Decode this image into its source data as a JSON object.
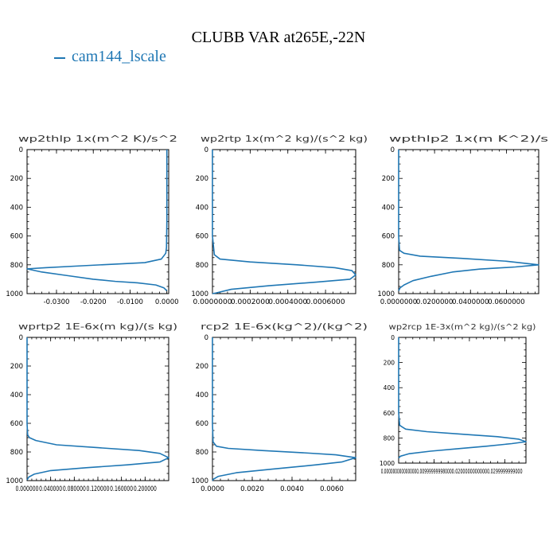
{
  "title": "CLUBB VAR at265E,-22N",
  "legend": {
    "label": "cam144_lscale",
    "color": "#1f77b4"
  },
  "series_color": "#1f77b4",
  "y_ticks": [
    "0",
    "200",
    "400",
    "600",
    "800",
    "1000"
  ],
  "chart_data": [
    {
      "type": "line",
      "title": "wp2thlp  1x(m^2 K)/s^2",
      "xlim": [
        -0.038,
        0.0005
      ],
      "ylim": [
        1000,
        0
      ],
      "x_ticks": [
        -0.03,
        -0.02,
        -0.01,
        0.0
      ],
      "x_tick_labels": [
        "-0.0300",
        "-0.0200",
        "-0.0100",
        "0.0000"
      ],
      "series": [
        {
          "name": "cam144_lscale",
          "x": [
            0.0,
            0.0,
            0.0,
            -0.0001,
            -0.0003,
            -0.0015,
            -0.006,
            -0.014,
            -0.024,
            -0.033,
            -0.038,
            -0.034,
            -0.027,
            -0.02,
            -0.014,
            -0.008,
            -0.003,
            -0.0008,
            0.0
          ],
          "y": [
            0,
            200,
            500,
            680,
            720,
            760,
            785,
            795,
            808,
            820,
            828,
            850,
            875,
            900,
            915,
            925,
            940,
            960,
            980
          ]
        }
      ]
    },
    {
      "type": "line",
      "title": "wp2rtp  1x(m^2 kg)/(s^2 kg)",
      "xlim": [
        0.0,
        0.00076
      ],
      "ylim": [
        1000,
        0
      ],
      "x_ticks": [
        0.0,
        0.0002,
        0.0004,
        0.0006
      ],
      "x_tick_labels": [
        "0.0000000",
        "0.0002000",
        "0.0004000",
        "0.0006000"
      ],
      "series": [
        {
          "name": "cam144_lscale",
          "x": [
            0.0,
            0.0,
            0.0,
            1e-05,
            4e-05,
            0.0002,
            0.00045,
            0.00065,
            0.00074,
            0.00076,
            0.00073,
            0.00055,
            0.0003,
            0.0001,
            2e-05,
            0.0
          ],
          "y": [
            0,
            300,
            600,
            730,
            760,
            780,
            800,
            820,
            840,
            870,
            900,
            920,
            945,
            970,
            995,
            1000
          ]
        }
      ]
    },
    {
      "type": "line",
      "title": "wpthlp2  1x(m K^2)/s",
      "xlim": [
        0.0,
        0.078
      ],
      "ylim": [
        1000,
        0
      ],
      "x_ticks": [
        0.0,
        0.02,
        0.04,
        0.06
      ],
      "x_tick_labels": [
        "0.0000000",
        "0.0200000",
        "0.0400000",
        "0.0600000"
      ],
      "series": [
        {
          "name": "cam144_lscale",
          "x": [
            0.0,
            0.0,
            0.0,
            0.0005,
            0.003,
            0.012,
            0.035,
            0.06,
            0.078,
            0.065,
            0.045,
            0.03,
            0.018,
            0.008,
            0.003,
            0.0008,
            0.0
          ],
          "y": [
            0,
            300,
            600,
            700,
            720,
            740,
            755,
            775,
            800,
            815,
            830,
            850,
            880,
            910,
            940,
            960,
            980
          ]
        }
      ]
    },
    {
      "type": "line",
      "title": "wprtp2  1E-6x(m kg)/(s kg)",
      "xlim": [
        0.0,
        0.24
      ],
      "ylim": [
        1000,
        0
      ],
      "x_ticks": [
        0.0,
        0.04,
        0.08,
        0.12,
        0.16,
        0.2
      ],
      "x_tick_labels": [
        "0.000000",
        "0.040000",
        "0.080000",
        "0.120000",
        "0.160000",
        "0.200000"
      ],
      "series": [
        {
          "name": "cam144_lscale",
          "x": [
            0.0,
            0.0,
            0.0,
            0.001,
            0.004,
            0.015,
            0.05,
            0.12,
            0.19,
            0.225,
            0.24,
            0.225,
            0.17,
            0.1,
            0.04,
            0.012,
            0.003,
            0.0
          ],
          "y": [
            0,
            300,
            600,
            680,
            700,
            720,
            750,
            770,
            790,
            810,
            840,
            870,
            890,
            910,
            930,
            955,
            975,
            995
          ]
        }
      ]
    },
    {
      "type": "line",
      "title": "rcp2  1E-6x(kg^2)/(kg^2)",
      "xlim": [
        0.0,
        0.0072
      ],
      "ylim": [
        1000,
        0
      ],
      "x_ticks": [
        0.0,
        0.002,
        0.004,
        0.006
      ],
      "x_tick_labels": [
        "0.0000",
        "0.0020",
        "0.0040",
        "0.0060"
      ],
      "series": [
        {
          "name": "cam144_lscale",
          "x": [
            0.0,
            0.0,
            0.0,
            3e-05,
            0.0002,
            0.0008,
            0.0025,
            0.0045,
            0.0062,
            0.0072,
            0.0065,
            0.0052,
            0.003,
            0.0012,
            0.0003,
            5e-05,
            0.0
          ],
          "y": [
            0,
            300,
            600,
            730,
            760,
            775,
            790,
            805,
            820,
            840,
            870,
            890,
            920,
            945,
            970,
            990,
            1000
          ]
        }
      ]
    },
    {
      "type": "line",
      "title": "wp2rcp  1E-3x(m^2 kg)/(s^2 kg)",
      "xlim": [
        0.0,
        0.036
      ],
      "ylim": [
        1000,
        0
      ],
      "x_ticks": [
        0.0,
        0.01,
        0.02,
        0.03
      ],
      "x_tick_labels": [
        "0.000000000000000",
        "0.00999999998000",
        "0.0200000000000",
        "0.0299999999000"
      ],
      "series": [
        {
          "name": "cam144_lscale",
          "x": [
            0.0,
            0.0,
            0.0,
            0.0003,
            0.002,
            0.008,
            0.018,
            0.028,
            0.034,
            0.036,
            0.032,
            0.025,
            0.017,
            0.009,
            0.003,
            0.0005,
            0.0
          ],
          "y": [
            0,
            300,
            600,
            700,
            730,
            750,
            770,
            790,
            810,
            830,
            845,
            865,
            885,
            905,
            925,
            945,
            960
          ]
        }
      ]
    }
  ]
}
